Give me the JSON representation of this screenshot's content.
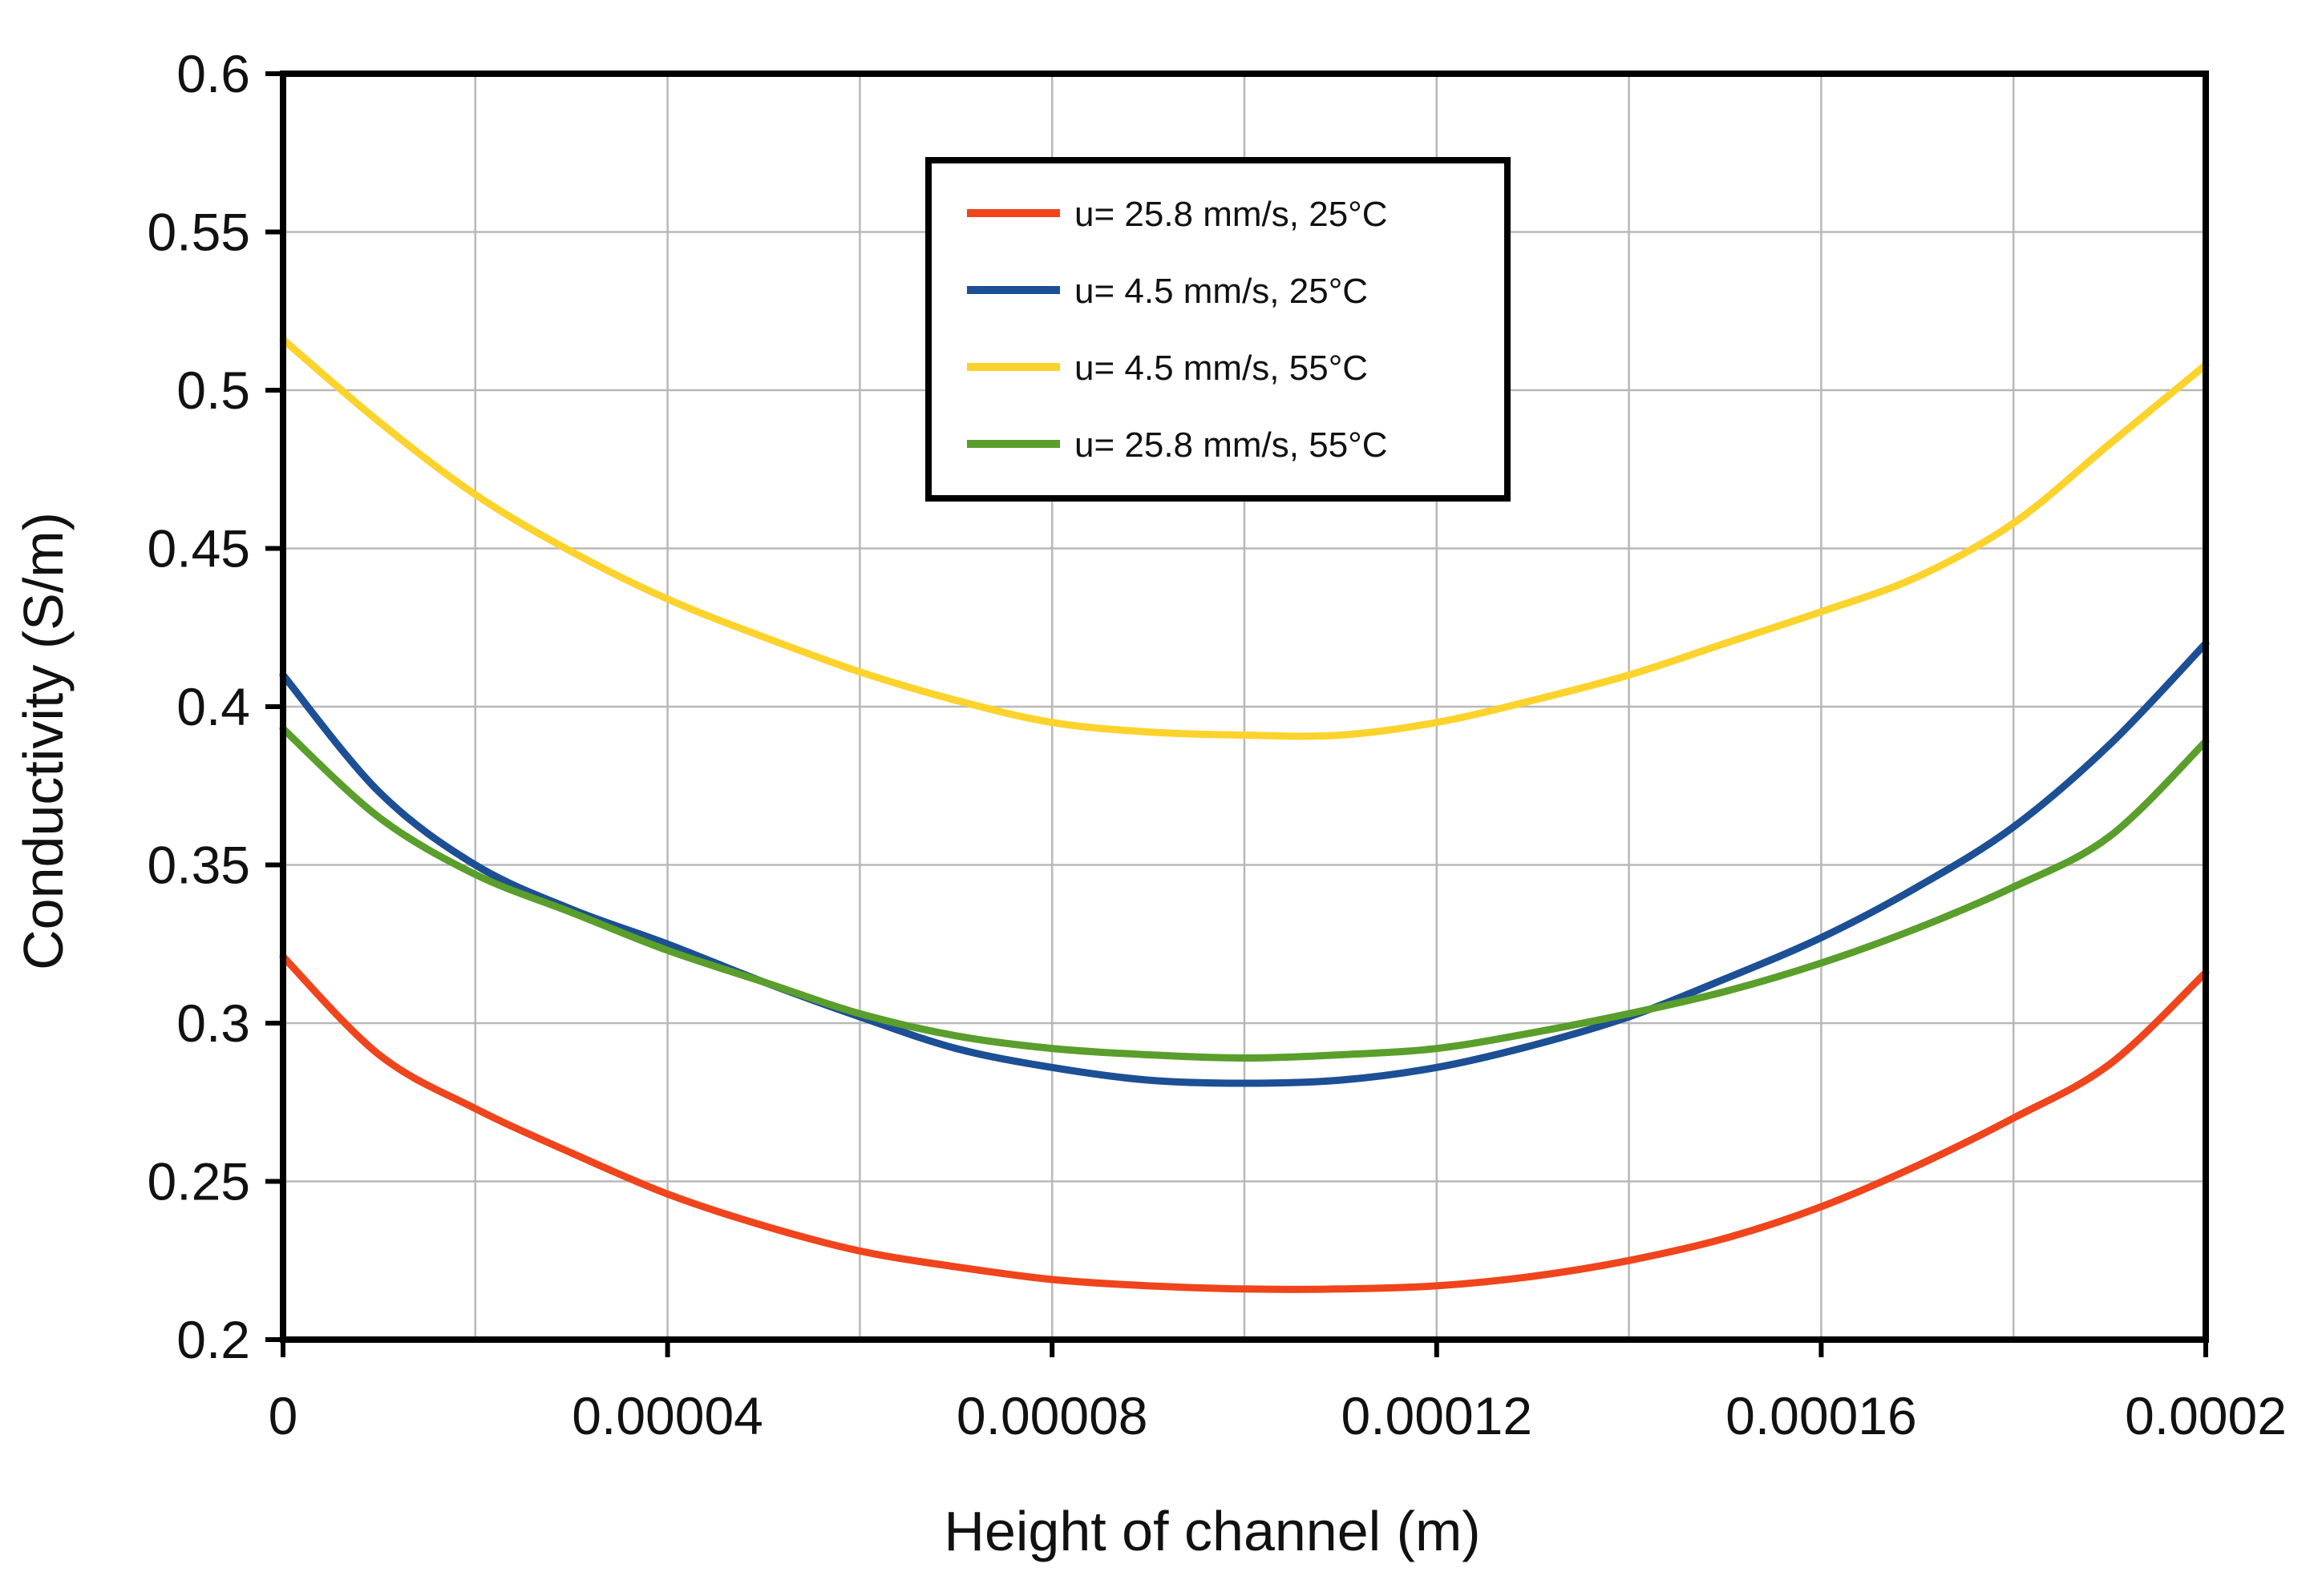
{
  "chart_data": {
    "type": "line",
    "title": "",
    "xlabel": "Height of channel (m)",
    "ylabel": "Conductivity (S/m)",
    "xlim": [
      0,
      0.0002
    ],
    "ylim": [
      0.2,
      0.6
    ],
    "x_ticks": [
      0,
      4e-05,
      8e-05,
      0.00012,
      0.00016,
      0.0002
    ],
    "x_tick_labels": [
      "0",
      "0.00004",
      "0.00008",
      "0.00012",
      "0.00016",
      "0.0002"
    ],
    "y_ticks": [
      0.2,
      0.25,
      0.3,
      0.35,
      0.4,
      0.45,
      0.5,
      0.55,
      0.6
    ],
    "y_tick_labels": [
      "0.2",
      "0.25",
      "0.3",
      "0.35",
      "0.4",
      "0.45",
      "0.5",
      "0.55",
      "0.6"
    ],
    "grid": true,
    "x_minor_gridlines": 2,
    "legend_position": "top-center",
    "series": [
      {
        "name": "u= 25.8 mm/s, 25°C",
        "color": "#f0441c",
        "x": [
          0,
          1e-05,
          2e-05,
          3e-05,
          4e-05,
          5e-05,
          6e-05,
          7e-05,
          8e-05,
          9e-05,
          0.0001,
          0.00011,
          0.00012,
          0.00013,
          0.00014,
          0.00015,
          0.00016,
          0.00017,
          0.00018,
          0.00019,
          0.0002
        ],
        "y": [
          0.321,
          0.29,
          0.273,
          0.259,
          0.246,
          0.236,
          0.228,
          0.223,
          0.219,
          0.217,
          0.216,
          0.216,
          0.217,
          0.22,
          0.225,
          0.232,
          0.242,
          0.255,
          0.27,
          0.287,
          0.316
        ]
      },
      {
        "name": "u= 4.5 mm/s, 25°C",
        "color": "#1c4f94",
        "x": [
          0,
          1e-05,
          2e-05,
          3e-05,
          4e-05,
          5e-05,
          6e-05,
          7e-05,
          8e-05,
          9e-05,
          0.0001,
          0.00011,
          0.00012,
          0.00013,
          0.00014,
          0.00015,
          0.00016,
          0.00017,
          0.00018,
          0.00019,
          0.0002
        ],
        "y": [
          0.41,
          0.373,
          0.35,
          0.336,
          0.325,
          0.313,
          0.302,
          0.292,
          0.286,
          0.282,
          0.281,
          0.282,
          0.286,
          0.293,
          0.302,
          0.314,
          0.327,
          0.343,
          0.362,
          0.388,
          0.42
        ]
      },
      {
        "name": "u= 4.5 mm/s, 55°C",
        "color": "#fcd32c",
        "x": [
          0,
          1e-05,
          2e-05,
          3e-05,
          4e-05,
          5e-05,
          6e-05,
          7e-05,
          8e-05,
          9e-05,
          0.0001,
          0.00011,
          0.00012,
          0.00013,
          0.00014,
          0.00015,
          0.00016,
          0.00017,
          0.00018,
          0.00019,
          0.0002
        ],
        "y": [
          0.516,
          0.49,
          0.467,
          0.449,
          0.434,
          0.422,
          0.411,
          0.402,
          0.395,
          0.392,
          0.391,
          0.391,
          0.395,
          0.402,
          0.41,
          0.42,
          0.43,
          0.441,
          0.458,
          0.483,
          0.508
        ]
      },
      {
        "name": "u= 25.8 mm/s, 55°C",
        "color": "#5a9e2c",
        "x": [
          0,
          1e-05,
          2e-05,
          3e-05,
          4e-05,
          5e-05,
          6e-05,
          7e-05,
          8e-05,
          9e-05,
          0.0001,
          0.00011,
          0.00012,
          0.00013,
          0.00014,
          0.00015,
          0.00016,
          0.00017,
          0.00018,
          0.00019,
          0.0002
        ],
        "y": [
          0.393,
          0.365,
          0.347,
          0.335,
          0.323,
          0.313,
          0.303,
          0.296,
          0.292,
          0.29,
          0.289,
          0.29,
          0.292,
          0.297,
          0.303,
          0.31,
          0.319,
          0.33,
          0.343,
          0.359,
          0.389
        ]
      }
    ]
  }
}
